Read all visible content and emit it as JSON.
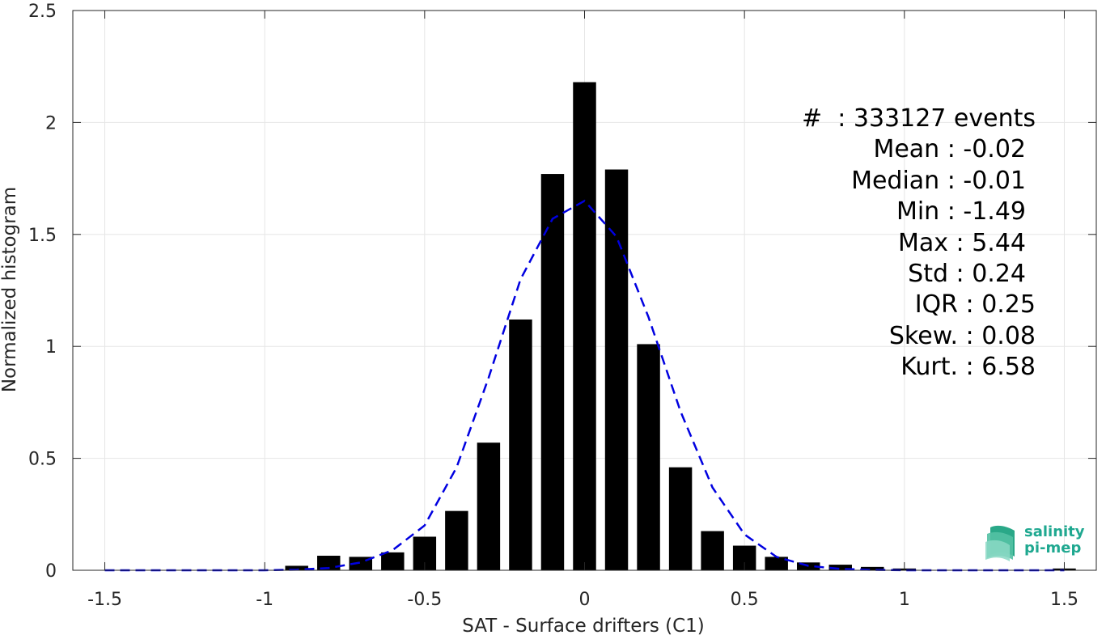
{
  "chart_data": {
    "type": "bar",
    "title": "",
    "xlabel": "SAT - Surface drifters (C1)",
    "ylabel": "Normalized histogram",
    "xlim": [
      -1.6,
      1.6
    ],
    "ylim": [
      0,
      2.5
    ],
    "xticks": [
      "-1.5",
      "-1",
      "-0.5",
      "0",
      "0.5",
      "1",
      "1.5"
    ],
    "yticks": [
      "0",
      "0.5",
      "1",
      "1.5",
      "2",
      "2.5"
    ],
    "grid": true,
    "series": [
      {
        "kind": "bar",
        "color": "#000000",
        "x": [
          -0.9,
          -0.8,
          -0.7,
          -0.6,
          -0.5,
          -0.4,
          -0.3,
          -0.2,
          -0.1,
          0.0,
          0.1,
          0.2,
          0.3,
          0.4,
          0.5,
          0.6,
          0.7,
          0.8,
          0.9,
          1.0,
          1.5
        ],
        "values": [
          0.02,
          0.065,
          0.06,
          0.08,
          0.15,
          0.265,
          0.57,
          1.12,
          1.77,
          2.18,
          1.79,
          1.01,
          0.46,
          0.175,
          0.11,
          0.06,
          0.035,
          0.025,
          0.015,
          0.008,
          0.008
        ]
      },
      {
        "kind": "line",
        "style": "dashed",
        "color": "#0000e0",
        "x": [
          -1.5,
          -1.0,
          -0.9,
          -0.8,
          -0.7,
          -0.6,
          -0.5,
          -0.4,
          -0.3,
          -0.2,
          -0.1,
          0.0,
          0.1,
          0.2,
          0.3,
          0.4,
          0.5,
          0.6,
          0.7,
          0.8,
          0.9,
          1.0,
          1.5
        ],
        "values": [
          0.0,
          0.0,
          0.003,
          0.01,
          0.035,
          0.09,
          0.2,
          0.46,
          0.86,
          1.3,
          1.57,
          1.65,
          1.49,
          1.13,
          0.71,
          0.37,
          0.16,
          0.06,
          0.02,
          0.006,
          0.002,
          0.0,
          0.0
        ]
      }
    ],
    "annotations": [
      "#  : 333127 events",
      "Mean : -0.02",
      "Median : -0.01",
      "Min : -1.49",
      "Max : 5.44",
      "Std : 0.24",
      "IQR : 0.25",
      "Skew. : 0.08",
      "Kurt. : 6.58"
    ]
  },
  "logo": {
    "line1": "salinity",
    "line2": "pi-mep"
  }
}
